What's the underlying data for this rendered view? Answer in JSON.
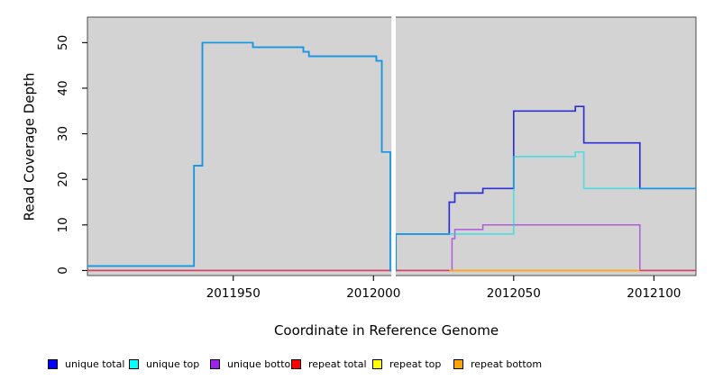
{
  "chart_data": {
    "type": "line",
    "subtype": "step",
    "title": "",
    "xlabel": "Coordinate in Reference Genome",
    "ylabel": "Read Coverage Depth",
    "xlim": [
      2011898,
      2012115
    ],
    "ylim": [
      -1.1,
      55.6
    ],
    "x_ticks": [
      2011950,
      2012000,
      2012050,
      2012100
    ],
    "y_ticks": [
      0,
      10,
      20,
      30,
      40,
      50
    ],
    "plot_background": "#D3D3D3",
    "grid": false,
    "legend_position": "bottom",
    "gap_band": {
      "x_start": 2012006,
      "x_end": 2012008,
      "color": "#FFFFFF",
      "note": "white vertical no-data band"
    },
    "legend": [
      {
        "label": "unique total",
        "color": "#0000FF"
      },
      {
        "label": "unique top",
        "color": "#00FFFF"
      },
      {
        "label": "unique bottom",
        "color": "#A020F0"
      },
      {
        "label": "repeat total",
        "color": "#FF0000"
      },
      {
        "label": "repeat top",
        "color": "#FFFF00"
      },
      {
        "label": "repeat bottom",
        "color": "#FFA500"
      }
    ],
    "series": [
      {
        "name": "repeat top",
        "stroke": "#F2F20A",
        "width": 1.5,
        "opacity": 1,
        "steps": [
          [
            2011898,
            0
          ],
          [
            2012115,
            0
          ]
        ]
      },
      {
        "name": "unique bottom",
        "stroke": "#AE5CD9",
        "width": 1.5,
        "opacity": 1,
        "steps": [
          [
            2011898,
            0
          ],
          [
            2012028,
            7
          ],
          [
            2012029,
            9
          ],
          [
            2012039,
            10
          ],
          [
            2012095,
            0
          ],
          [
            2012115,
            0
          ]
        ]
      },
      {
        "name": "repeat total",
        "stroke": "#DB3A60",
        "width": 1.5,
        "opacity": 1,
        "steps": [
          [
            2011898,
            0
          ],
          [
            2012115,
            0
          ]
        ]
      },
      {
        "name": "repeat bottom",
        "stroke": "#FFA51E",
        "width": 1.7,
        "opacity": 1,
        "steps": [
          [
            2012027,
            0
          ],
          [
            2012095,
            0
          ]
        ]
      },
      {
        "name": "unique total",
        "stroke": "#2F2FD8",
        "width": 1.7,
        "opacity": 1,
        "steps": [
          [
            2011898,
            1
          ],
          [
            2011936,
            23
          ],
          [
            2011939,
            50
          ],
          [
            2011957,
            49
          ],
          [
            2011975,
            48
          ],
          [
            2011977,
            47
          ],
          [
            2012001,
            46
          ],
          [
            2012003,
            26
          ],
          [
            2012006,
            0
          ],
          [
            2012008,
            8
          ],
          [
            2012027,
            15
          ],
          [
            2012029,
            17
          ],
          [
            2012039,
            18
          ],
          [
            2012050,
            35
          ],
          [
            2012072,
            36
          ],
          [
            2012075,
            28
          ],
          [
            2012095,
            18
          ],
          [
            2012115,
            18
          ]
        ]
      },
      {
        "name": "unique top",
        "stroke": "#00E1EC",
        "width": 1.7,
        "opacity": 0.6,
        "steps": [
          [
            2011898,
            1
          ],
          [
            2011936,
            23
          ],
          [
            2011939,
            50
          ],
          [
            2011957,
            49
          ],
          [
            2011975,
            48
          ],
          [
            2011977,
            47
          ],
          [
            2012001,
            46
          ],
          [
            2012003,
            26
          ],
          [
            2012006,
            0
          ],
          [
            2012008,
            8
          ],
          [
            2012050,
            25
          ],
          [
            2012072,
            26
          ],
          [
            2012075,
            18
          ],
          [
            2012115,
            18
          ]
        ]
      }
    ]
  }
}
